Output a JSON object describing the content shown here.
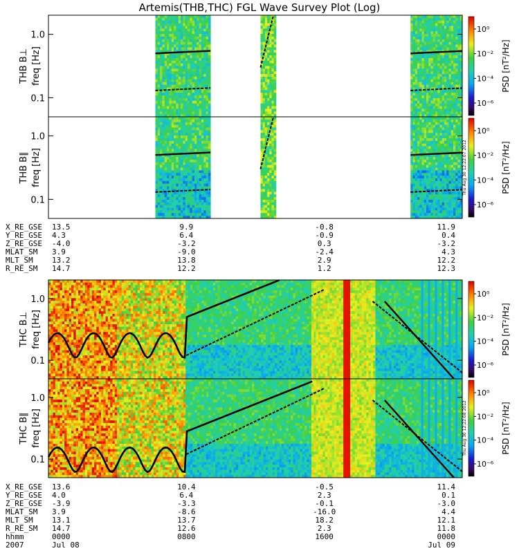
{
  "title": "Artemis(THB,THC) FGL Wave Survey Plot (Log)",
  "chart_data": {
    "type": "heatmap",
    "title": "Artemis(THB,THC) FGL Wave Survey Plot (Log)",
    "date": "2007",
    "panels": [
      {
        "id": "thb-bperp",
        "ylabel_top": "THB B⊥",
        "ylabel": "freq [Hz]",
        "yscale": "log",
        "ylim": [
          0.05,
          2.0
        ],
        "yticks": [
          "1.0",
          "0.1"
        ],
        "cbar_label": "PSD [nT²/Hz]",
        "cbar_ticks": [
          "10⁰",
          "10⁻²",
          "10⁻⁴",
          "10⁻⁶"
        ],
        "data_ranges": [
          [
            6.2,
            9.4
          ],
          [
            12.3,
            13.2
          ],
          [
            21.0,
            24.0
          ]
        ]
      },
      {
        "id": "thb-bpar",
        "ylabel_top": "THB B∥",
        "ylabel": "freq [Hz]",
        "yscale": "log",
        "ylim": [
          0.05,
          2.0
        ],
        "yticks": [
          "1.0",
          "0.1"
        ],
        "cbar_label": "PSD [nT²/Hz]",
        "cbar_ticks": [
          "10⁰",
          "10⁻²",
          "10⁻⁴",
          "10⁻⁶"
        ],
        "data_ranges": [
          [
            6.2,
            9.4
          ],
          [
            12.3,
            13.2
          ],
          [
            21.0,
            24.0
          ]
        ]
      },
      {
        "id": "thc-bperp",
        "ylabel_top": "THC B⊥",
        "ylabel": "freq [Hz]",
        "yscale": "log",
        "ylim": [
          0.05,
          2.0
        ],
        "yticks": [
          "1.0",
          "0.1"
        ],
        "cbar_label": "PSD [nT²/Hz]",
        "cbar_ticks": [
          "10⁰",
          "10⁻²",
          "10⁻⁴",
          "10⁻⁶"
        ],
        "data_ranges": [
          [
            0.0,
            24.0
          ]
        ]
      },
      {
        "id": "thc-bpar",
        "ylabel_top": "THC B∥",
        "ylabel": "freq [Hz]",
        "yscale": "log",
        "ylim": [
          0.05,
          2.0
        ],
        "yticks": [
          "1.0",
          "0.1"
        ],
        "cbar_label": "PSD [nT²/Hz]",
        "cbar_ticks": [
          "10⁰",
          "10⁻²",
          "10⁻⁴",
          "10⁻⁶"
        ],
        "data_ranges": [
          [
            0.0,
            24.0
          ]
        ]
      }
    ],
    "stamps": [
      "Thu Aug 30 12:22:07 2012",
      "Thu Aug 30 12:22:08 2012"
    ],
    "orbit_thb": {
      "labels": [
        "X_RE_GSE",
        "Y_RE_GSE",
        "Z_RE_GSE",
        "MLAT_SM",
        "MLT_SM",
        "R_RE_SM"
      ],
      "columns": [
        [
          "13.5",
          "4.3",
          "-4.0",
          "3.9",
          "13.2",
          "14.7"
        ],
        [
          "9.9",
          "6.4",
          "-3.2",
          "-9.0",
          "13.8",
          "12.2"
        ],
        [
          "-0.8",
          "-0.9",
          "0.3",
          "-2.4",
          "2.9",
          "1.2"
        ],
        [
          "11.9",
          "0.4",
          "-3.2",
          "4.3",
          "12.2",
          "12.3"
        ]
      ]
    },
    "orbit_thc": {
      "labels": [
        "X_RE_GSE",
        "Y_RE_GSE",
        "Z_RE_GSE",
        "MLAT_SM",
        "MLT_SM",
        "R_RE_SM",
        "hhmm",
        "2007"
      ],
      "columns": [
        [
          "13.6",
          "4.0",
          "-3.9",
          "3.9",
          "13.1",
          "14.7",
          "0000",
          "Jul 08"
        ],
        [
          "10.4",
          "6.4",
          "-3.3",
          "-8.6",
          "13.7",
          "12.6",
          "0800",
          ""
        ],
        [
          "-0.5",
          "2.3",
          "-0.1",
          "-16.0",
          "18.2",
          "2.3",
          "1600",
          ""
        ],
        [
          "11.4",
          "0.1",
          "-3.0",
          "4.4",
          "12.1",
          "11.8",
          "0000",
          "Jul 09"
        ]
      ]
    }
  }
}
